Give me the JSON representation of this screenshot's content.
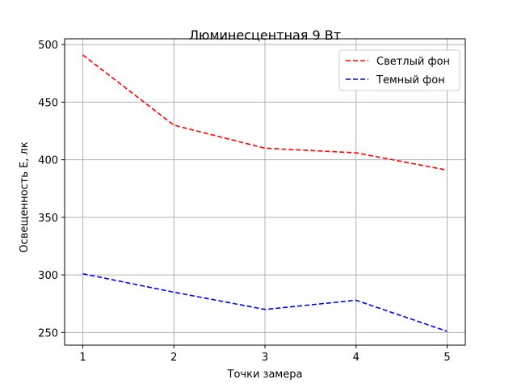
{
  "chart_data": {
    "type": "line",
    "title": "Люминесцентная 9 Вт",
    "xlabel": "Точки замера",
    "ylabel": "Освещенность Е, лк",
    "x": [
      1,
      2,
      3,
      4,
      5
    ],
    "xticks": [
      "1",
      "2",
      "3",
      "4",
      "5"
    ],
    "yticks": [
      "250",
      "300",
      "350",
      "400",
      "450",
      "500"
    ],
    "xlim": [
      0.8,
      5.2
    ],
    "ylim": [
      239,
      505
    ],
    "grid": true,
    "legend_position": "top-right",
    "series": [
      {
        "name": "Светлый фон",
        "color": "#ff0000",
        "style": "dashed",
        "values": [
          491,
          430,
          410,
          406,
          391
        ]
      },
      {
        "name": "Темный фон",
        "color": "#0000ff",
        "style": "dashed",
        "values": [
          301,
          285,
          270,
          278,
          251
        ]
      }
    ]
  }
}
